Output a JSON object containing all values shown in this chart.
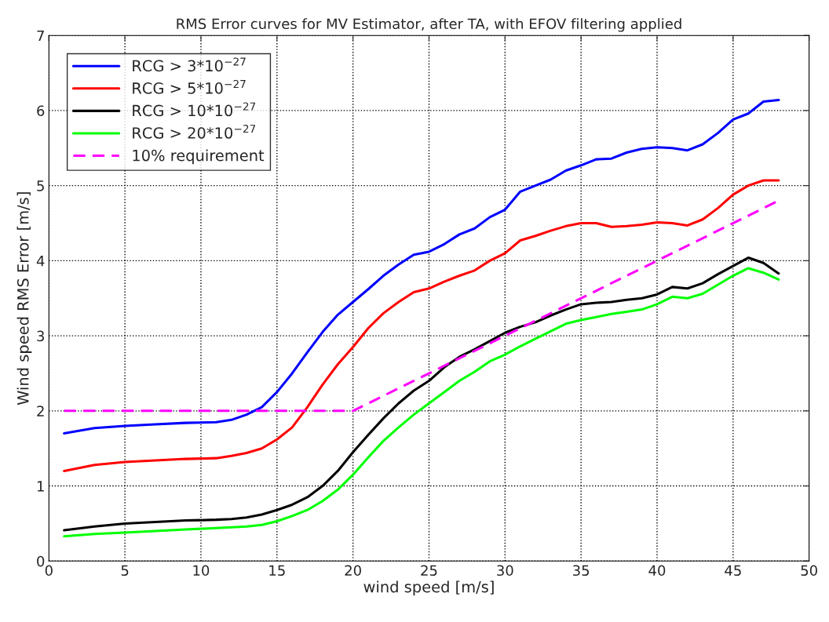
{
  "chart_data": {
    "type": "line",
    "title": "RMS Error curves for MV Estimator, after TA, with EFOV filtering applied",
    "xlabel": "wind speed [m/s]",
    "ylabel": "Wind speed RMS Error [m/s]",
    "x": [
      1,
      3,
      5,
      7,
      9,
      11,
      12,
      13,
      14,
      15,
      16,
      17,
      18,
      19,
      20,
      21,
      22,
      23,
      24,
      25,
      26,
      27,
      28,
      29,
      30,
      31,
      32,
      33,
      34,
      35,
      36,
      37,
      38,
      39,
      40,
      41,
      42,
      43,
      44,
      45,
      46,
      47,
      48
    ],
    "series": [
      {
        "name": "RCG > 3*10$^{−27}$",
        "color": "#0000ff",
        "values": [
          1.7,
          1.77,
          1.8,
          1.82,
          1.84,
          1.85,
          1.88,
          1.95,
          2.05,
          2.25,
          2.5,
          2.78,
          3.05,
          3.28,
          3.45,
          3.62,
          3.8,
          3.95,
          4.08,
          4.12,
          4.22,
          4.35,
          4.43,
          4.58,
          4.68,
          4.92,
          5.0,
          5.08,
          5.2,
          5.27,
          5.35,
          5.36,
          5.44,
          5.49,
          5.51,
          5.5,
          5.47,
          5.55,
          5.7,
          5.88,
          5.96,
          6.12,
          6.14
        ]
      },
      {
        "name": "RCG > 5*10$^{−27}$",
        "color": "#ff0000",
        "values": [
          1.2,
          1.28,
          1.32,
          1.34,
          1.36,
          1.37,
          1.4,
          1.44,
          1.5,
          1.62,
          1.78,
          2.05,
          2.35,
          2.62,
          2.85,
          3.1,
          3.3,
          3.45,
          3.58,
          3.63,
          3.72,
          3.8,
          3.87,
          4.0,
          4.1,
          4.27,
          4.33,
          4.4,
          4.46,
          4.5,
          4.5,
          4.45,
          4.46,
          4.48,
          4.51,
          4.5,
          4.47,
          4.55,
          4.7,
          4.88,
          5.0,
          5.07,
          5.07
        ]
      },
      {
        "name": "RCG > 10*10$^{−27}$",
        "color": "#000000",
        "values": [
          0.41,
          0.46,
          0.5,
          0.52,
          0.54,
          0.55,
          0.56,
          0.58,
          0.62,
          0.68,
          0.75,
          0.85,
          1.0,
          1.2,
          1.45,
          1.68,
          1.9,
          2.1,
          2.27,
          2.4,
          2.58,
          2.72,
          2.82,
          2.93,
          3.04,
          3.12,
          3.18,
          3.27,
          3.35,
          3.42,
          3.44,
          3.45,
          3.48,
          3.5,
          3.55,
          3.65,
          3.63,
          3.7,
          3.82,
          3.93,
          4.04,
          3.97,
          3.83
        ]
      },
      {
        "name": "RCG > 20*10$^{−27}$",
        "color": "#00ff00",
        "values": [
          0.33,
          0.36,
          0.38,
          0.4,
          0.42,
          0.44,
          0.45,
          0.46,
          0.48,
          0.53,
          0.6,
          0.68,
          0.8,
          0.95,
          1.15,
          1.38,
          1.6,
          1.78,
          1.95,
          2.1,
          2.25,
          2.4,
          2.52,
          2.66,
          2.75,
          2.86,
          2.96,
          3.06,
          3.16,
          3.21,
          3.25,
          3.29,
          3.32,
          3.35,
          3.42,
          3.52,
          3.5,
          3.56,
          3.68,
          3.8,
          3.9,
          3.84,
          3.75
        ]
      },
      {
        "name": "10% requirement",
        "color": "#ff00ff",
        "x": [
          1,
          20,
          48
        ],
        "values": [
          2,
          2,
          4.8
        ],
        "line_style": "dashed"
      }
    ],
    "xlim": [
      0,
      50
    ],
    "xticks": [
      0,
      5,
      10,
      15,
      20,
      25,
      30,
      35,
      40,
      45,
      50
    ],
    "ylim": [
      0,
      7
    ],
    "yticks": [
      0,
      1,
      2,
      3,
      4,
      5,
      6,
      7
    ],
    "grid": true,
    "legend": "top left"
  }
}
